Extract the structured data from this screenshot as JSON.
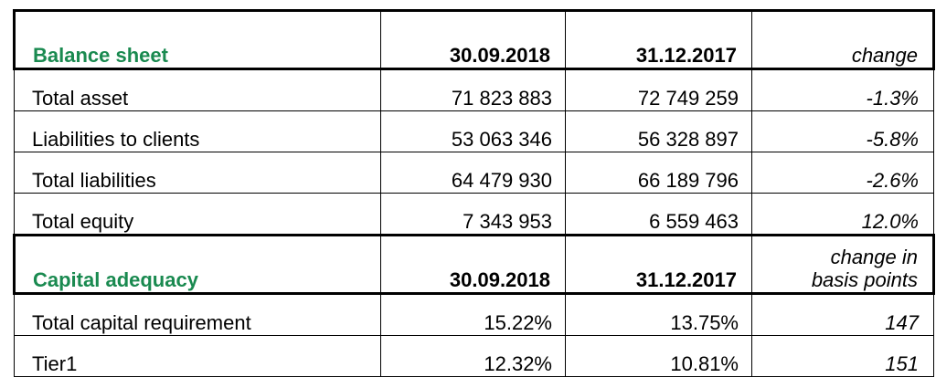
{
  "balance": {
    "title": "Balance sheet",
    "col1": "30.09.2018",
    "col2": "31.12.2017",
    "col3": "change",
    "rows": [
      {
        "label": "Total asset",
        "v1": "71 823 883",
        "v2": "72 749 259",
        "change": "-1.3%"
      },
      {
        "label": "Liabilities to clients",
        "v1": "53 063 346",
        "v2": "56 328 897",
        "change": "-5.8%"
      },
      {
        "label": "Total liabilities",
        "v1": "64 479 930",
        "v2": "66 189 796",
        "change": "-2.6%"
      },
      {
        "label": "Total equity",
        "v1": "7 343 953",
        "v2": "6 559 463",
        "change": "12.0%"
      }
    ]
  },
  "capital": {
    "title": "Capital adequacy",
    "col1": "30.09.2018",
    "col2": "31.12.2017",
    "col3_line1": "change in",
    "col3_line2": "basis points",
    "rows": [
      {
        "label": "Total capital requirement",
        "v1": "15.22%",
        "v2": "13.75%",
        "change": "147"
      },
      {
        "label": "Tier1",
        "v1": "12.32%",
        "v2": "10.81%",
        "change": "151"
      }
    ]
  }
}
